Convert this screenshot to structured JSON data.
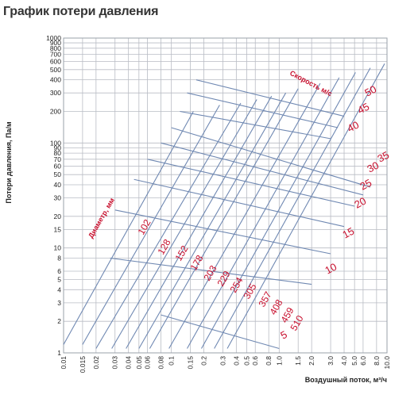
{
  "page_title": "График потери давления",
  "chart_data": {
    "type": "line",
    "title": "График потери давления",
    "xlabel": "Воздушный поток, м³/ч",
    "ylabel": "Потери давления, Па/м",
    "x_scale": "log",
    "y_scale": "log",
    "xlim": [
      0.01,
      10
    ],
    "ylim": [
      1,
      1000
    ],
    "grid": true,
    "x_ticks": [
      "0.01",
      "0.015",
      "0.02",
      "0.03",
      "0.04",
      "0.05",
      "0.06",
      "0.08",
      "0.1",
      "0.15",
      "0.2",
      "0.3",
      "0.4",
      "0.5",
      "0.6",
      "0.8",
      "1.0",
      "1.5",
      "2.0",
      "3.0",
      "4.0",
      "5.0",
      "6.0",
      "8.0",
      "10.0"
    ],
    "y_ticks": [
      "1",
      "2",
      "3",
      "4",
      "5",
      "6",
      "8",
      "10",
      "15",
      "20",
      "30",
      "40",
      "50",
      "60",
      "70",
      "80",
      "90",
      "100",
      "200",
      "300",
      "400",
      "500",
      "600",
      "700",
      "800",
      "900",
      "1000"
    ],
    "diameter_label": "Диаметр, мм",
    "velocity_label": "Скорость м/с",
    "diameter_series": [
      {
        "label": "102",
        "x": [
          0.01,
          0.16
        ],
        "y": [
          1.2,
          200
        ]
      },
      {
        "label": "128",
        "x": [
          0.015,
          0.28
        ],
        "y": [
          1.2,
          230
        ]
      },
      {
        "label": "152",
        "x": [
          0.02,
          0.44
        ],
        "y": [
          1.1,
          240
        ]
      },
      {
        "label": "178",
        "x": [
          0.028,
          0.62
        ],
        "y": [
          1.1,
          260
        ]
      },
      {
        "label": "203",
        "x": [
          0.038,
          0.85
        ],
        "y": [
          1.1,
          280
        ]
      },
      {
        "label": "229",
        "x": [
          0.05,
          1.15
        ],
        "y": [
          1.1,
          300
        ]
      },
      {
        "label": "254",
        "x": [
          0.063,
          1.5
        ],
        "y": [
          1.1,
          330
        ]
      },
      {
        "label": "305",
        "x": [
          0.095,
          2.4
        ],
        "y": [
          1.1,
          370
        ]
      },
      {
        "label": "357",
        "x": [
          0.14,
          3.6
        ],
        "y": [
          1.1,
          420
        ]
      },
      {
        "label": "408",
        "x": [
          0.19,
          5.1
        ],
        "y": [
          1.1,
          470
        ]
      },
      {
        "label": "459",
        "x": [
          0.25,
          7.0
        ],
        "y": [
          1.1,
          520
        ]
      },
      {
        "label": "510",
        "x": [
          0.33,
          9.5
        ],
        "y": [
          1.1,
          570
        ]
      }
    ],
    "velocity_series": [
      {
        "label": "5",
        "x": [
          0.08,
          1.0
        ],
        "y": [
          2.3,
          1.1
        ]
      },
      {
        "label": "10",
        "x": [
          0.027,
          2.0
        ],
        "y": [
          8.0,
          4.5
        ]
      },
      {
        "label": "15",
        "x": [
          0.03,
          3.0
        ],
        "y": [
          23,
          8.8
        ]
      },
      {
        "label": "20",
        "x": [
          0.045,
          4.0
        ],
        "y": [
          45,
          16
        ]
      },
      {
        "label": "25",
        "x": [
          0.06,
          5.0
        ],
        "y": [
          70,
          25
        ]
      },
      {
        "label": "30",
        "x": [
          0.08,
          6.0
        ],
        "y": [
          100,
          32
        ]
      },
      {
        "label": "35",
        "x": [
          0.1,
          7.0
        ],
        "y": [
          140,
          38
        ]
      },
      {
        "label": "40",
        "x": [
          0.12,
          3.0
        ],
        "y": [
          200,
          110
        ]
      },
      {
        "label": "45",
        "x": [
          0.14,
          3.5
        ],
        "y": [
          300,
          140
        ]
      },
      {
        "label": "50",
        "x": [
          0.17,
          4.0
        ],
        "y": [
          400,
          180
        ]
      }
    ]
  }
}
